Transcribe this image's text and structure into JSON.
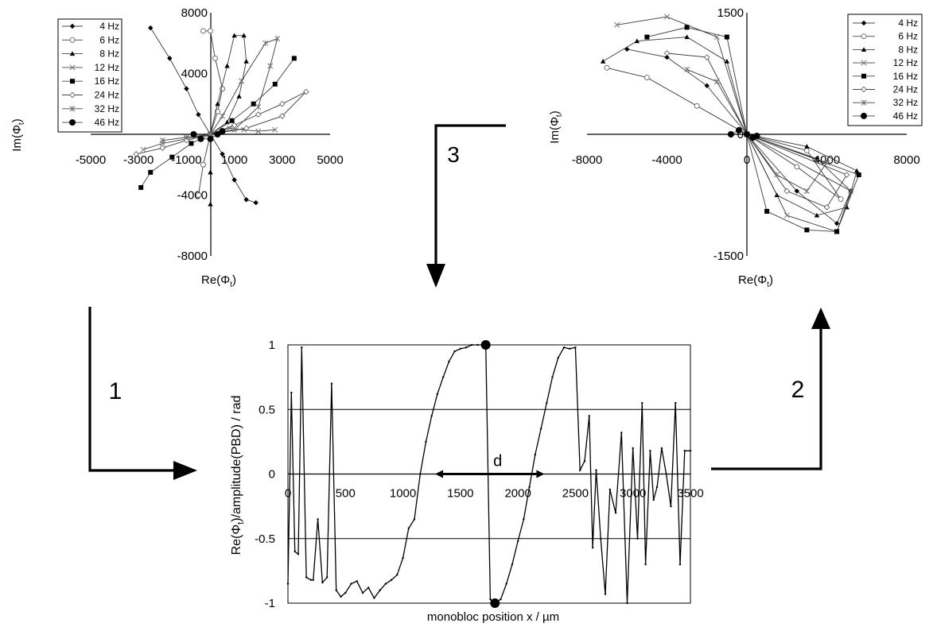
{
  "chart_data": [
    {
      "type": "scatter",
      "xlabel": "Re(Φ",
      "xlabel_sub": "t",
      "ylabel": "Im(Φ",
      "ylabel_sub": "t",
      "xlim": [
        -5000,
        5000
      ],
      "ylim": [
        -8000,
        8000
      ],
      "xticks": [
        "-5000",
        "-3000",
        "-1000",
        "1000",
        "3000",
        "5000"
      ],
      "xtick_values": [
        -5000,
        -3000,
        -1000,
        1000,
        3000,
        5000
      ],
      "yticks": [
        "8000",
        "4000",
        "-4000",
        "-8000"
      ],
      "ytick_values": [
        8000,
        4000,
        -4000,
        -8000
      ],
      "grid": false,
      "legend_position": "top-left",
      "series": [
        {
          "name": "4 Hz",
          "marker": "diamond",
          "points": [
            [
              -2500,
              7000
            ],
            [
              -1700,
              5000
            ],
            [
              -1000,
              3000
            ],
            [
              -500,
              1300
            ],
            [
              0,
              0
            ],
            [
              500,
              -1300
            ],
            [
              1000,
              -3000
            ],
            [
              1500,
              -4300
            ],
            [
              1900,
              -4500
            ]
          ]
        },
        {
          "name": "6 Hz",
          "marker": "circle-open",
          "points": [
            [
              -500,
              -4000
            ],
            [
              -300,
              -2000
            ],
            [
              0,
              0
            ],
            [
              300,
              1500
            ],
            [
              500,
              3000
            ],
            [
              200,
              5000
            ],
            [
              0,
              6800
            ],
            [
              -300,
              6800
            ]
          ]
        },
        {
          "name": "8 Hz",
          "marker": "triangle",
          "points": [
            [
              0,
              -4600
            ],
            [
              0,
              -2500
            ],
            [
              0,
              0
            ],
            [
              300,
              2000
            ],
            [
              700,
              4500
            ],
            [
              1000,
              6500
            ],
            [
              1400,
              6500
            ],
            [
              1500,
              4800
            ],
            [
              1200,
              2500
            ],
            [
              700,
              800
            ],
            [
              0,
              0
            ]
          ]
        },
        {
          "name": "12 Hz",
          "marker": "x",
          "points": [
            [
              -2800,
              -1000
            ],
            [
              -2000,
              -600
            ],
            [
              -1000,
              -300
            ],
            [
              0,
              0
            ],
            [
              800,
              400
            ],
            [
              1400,
              300
            ],
            [
              2000,
              200
            ],
            [
              2700,
              300
            ]
          ]
        },
        {
          "name": "16 Hz",
          "marker": "square",
          "points": [
            [
              -2900,
              -3500
            ],
            [
              -2500,
              -2500
            ],
            [
              -1600,
              -1500
            ],
            [
              -800,
              -600
            ],
            [
              0,
              0
            ],
            [
              900,
              900
            ],
            [
              1800,
              2000
            ],
            [
              2700,
              3300
            ],
            [
              3500,
              5000
            ]
          ]
        },
        {
          "name": "24 Hz",
          "marker": "diamond-open",
          "points": [
            [
              -3100,
              -1300
            ],
            [
              -2000,
              -900
            ],
            [
              -1000,
              -400
            ],
            [
              0,
              0
            ],
            [
              1000,
              600
            ],
            [
              2000,
              1300
            ],
            [
              3000,
              2000
            ],
            [
              4000,
              2800
            ],
            [
              3000,
              1200
            ],
            [
              1500,
              400
            ],
            [
              0,
              0
            ]
          ]
        },
        {
          "name": "32 Hz",
          "marker": "star",
          "points": [
            [
              -2000,
              -400
            ],
            [
              -1000,
              -200
            ],
            [
              0,
              0
            ],
            [
              1000,
              300
            ],
            [
              2000,
              1800
            ],
            [
              2500,
              4500
            ],
            [
              2800,
              6300
            ],
            [
              2300,
              6000
            ],
            [
              1300,
              3500
            ],
            [
              500,
              1200
            ],
            [
              0,
              0
            ]
          ]
        },
        {
          "name": "46 Hz",
          "marker": "circle",
          "points": [
            [
              -700,
              0
            ],
            [
              -400,
              -300
            ],
            [
              0,
              -300
            ],
            [
              300,
              0
            ],
            [
              500,
              200
            ]
          ]
        }
      ]
    },
    {
      "type": "scatter",
      "xlabel": "Re(Φ",
      "xlabel_sub": "t",
      "ylabel": "Im(Φ",
      "ylabel_sub": "t",
      "xlim": [
        -8000,
        8000
      ],
      "ylim": [
        -1500,
        1500
      ],
      "xticks": [
        "-8000",
        "-4000",
        "0",
        "4000",
        "8000"
      ],
      "xtick_values": [
        -8000,
        -4000,
        0,
        4000,
        8000
      ],
      "yticks": [
        "1500",
        "0",
        "-1500"
      ],
      "ytick_values": [
        1500,
        0,
        -1500
      ],
      "grid": false,
      "legend_position": "top-right",
      "series": [
        {
          "name": "4 Hz",
          "marker": "diamond",
          "points": [
            [
              -6000,
              1050
            ],
            [
              -4000,
              950
            ],
            [
              -2000,
              600
            ],
            [
              0,
              0
            ],
            [
              2500,
              -700
            ],
            [
              4500,
              -1100
            ],
            [
              5200,
              -700
            ],
            [
              3500,
              -300
            ],
            [
              0,
              0
            ]
          ]
        },
        {
          "name": "6 Hz",
          "marker": "circle-open",
          "points": [
            [
              -7000,
              820
            ],
            [
              -5000,
              700
            ],
            [
              -2500,
              350
            ],
            [
              0,
              0
            ],
            [
              2500,
              -400
            ],
            [
              4700,
              -800
            ],
            [
              3000,
              -200
            ],
            [
              0,
              0
            ]
          ]
        },
        {
          "name": "8 Hz",
          "marker": "triangle",
          "points": [
            [
              -7200,
              900
            ],
            [
              -5500,
              1150
            ],
            [
              -3000,
              1200
            ],
            [
              -1000,
              900
            ],
            [
              0,
              0
            ],
            [
              1500,
              -750
            ],
            [
              3500,
              -1000
            ],
            [
              5000,
              -900
            ],
            [
              5500,
              -450
            ],
            [
              3000,
              -150
            ],
            [
              0,
              0
            ]
          ]
        },
        {
          "name": "12 Hz",
          "marker": "x",
          "points": [
            [
              -6500,
              1350
            ],
            [
              -4000,
              1450
            ],
            [
              -1500,
              1200
            ],
            [
              0,
              0
            ],
            [
              2000,
              -1000
            ],
            [
              4500,
              -1200
            ],
            [
              5200,
              -700
            ],
            [
              0,
              0
            ]
          ]
        },
        {
          "name": "16 Hz",
          "marker": "square",
          "points": [
            [
              -5000,
              1200
            ],
            [
              -3000,
              1320
            ],
            [
              -1000,
              1200
            ],
            [
              0,
              0
            ],
            [
              1000,
              -950
            ],
            [
              3000,
              -1180
            ],
            [
              4500,
              -1200
            ],
            [
              5600,
              -500
            ],
            [
              0,
              0
            ]
          ]
        },
        {
          "name": "24 Hz",
          "marker": "diamond-open",
          "points": [
            [
              -4000,
              1000
            ],
            [
              -2000,
              950
            ],
            [
              0,
              0
            ],
            [
              2000,
              -700
            ],
            [
              4000,
              -900
            ],
            [
              5000,
              -500
            ],
            [
              0,
              0
            ]
          ]
        },
        {
          "name": "32 Hz",
          "marker": "star",
          "points": [
            [
              -3000,
              800
            ],
            [
              -1500,
              650
            ],
            [
              0,
              0
            ],
            [
              1500,
              -500
            ],
            [
              3000,
              -700
            ],
            [
              4000,
              -350
            ],
            [
              0,
              0
            ]
          ]
        },
        {
          "name": "46 Hz",
          "marker": "circle",
          "points": [
            [
              -800,
              0
            ],
            [
              -400,
              50
            ],
            [
              0,
              0
            ],
            [
              300,
              -40
            ],
            [
              500,
              -20
            ]
          ]
        }
      ]
    },
    {
      "type": "line",
      "xlabel": "monobloc position x / µm",
      "ylabel": "Re(Φ",
      "ylabel_sub": "t",
      "ylabel_tail": ")/amplitude(PBD) / rad",
      "xlim": [
        0,
        3500
      ],
      "ylim": [
        -1,
        1
      ],
      "xticks": [
        "0",
        "500",
        "1000",
        "1500",
        "2000",
        "2500",
        "3000",
        "3500"
      ],
      "xtick_values": [
        0,
        500,
        1000,
        1500,
        2000,
        2500,
        3000,
        3500
      ],
      "yticks": [
        "1",
        "0.5",
        "0",
        "-0.5",
        "-1"
      ],
      "ytick_values": [
        1,
        0.5,
        0,
        -0.5,
        -1
      ],
      "grid": true,
      "annotation": "d",
      "annotation_range": [
        1280,
        2230
      ],
      "extrema": [
        [
          1720,
          1
        ],
        [
          1800,
          -1
        ]
      ],
      "series": [
        {
          "x": [
            0,
            30,
            60,
            90,
            120,
            160,
            200,
            220,
            260,
            300,
            340,
            380,
            420,
            460,
            500,
            550,
            600,
            650,
            700,
            750,
            800,
            850,
            900,
            950,
            1000,
            1050,
            1100,
            1150,
            1200,
            1250,
            1300,
            1350,
            1400,
            1450,
            1500,
            1550,
            1600,
            1650,
            1700,
            1720,
            1760,
            1800,
            1850,
            1900,
            1950,
            2000,
            2050,
            2100,
            2150,
            2200,
            2250,
            2300,
            2350,
            2400,
            2450,
            2500,
            2540,
            2580,
            2620,
            2650,
            2680,
            2720,
            2760,
            2800,
            2850,
            2900,
            2950,
            3000,
            3040,
            3080,
            3110,
            3150,
            3180,
            3210,
            3250,
            3290,
            3330,
            3370,
            3410,
            3450,
            3500
          ],
          "y": [
            -0.85,
            0.63,
            -0.6,
            -0.62,
            0.98,
            -0.8,
            -0.82,
            -0.82,
            -0.35,
            -0.84,
            -0.8,
            0.7,
            -0.9,
            -0.95,
            -0.92,
            -0.85,
            -0.83,
            -0.92,
            -0.88,
            -0.96,
            -0.9,
            -0.85,
            -0.82,
            -0.78,
            -0.65,
            -0.42,
            -0.35,
            0.0,
            0.25,
            0.45,
            0.62,
            0.75,
            0.87,
            0.95,
            0.97,
            0.98,
            1.0,
            1.0,
            1.0,
            1.0,
            -0.97,
            -1.0,
            -0.97,
            -0.85,
            -0.7,
            -0.52,
            -0.35,
            -0.1,
            0.15,
            0.35,
            0.55,
            0.75,
            0.9,
            0.98,
            0.97,
            0.98,
            0.03,
            0.1,
            0.45,
            -0.57,
            0.03,
            -0.5,
            -0.93,
            -0.12,
            -0.3,
            0.32,
            -1.0,
            0.2,
            -0.5,
            0.55,
            -0.7,
            0.18,
            -0.2,
            -0.1,
            0.2,
            0.0,
            -0.25,
            0.55,
            -0.7,
            0.18,
            0.18
          ]
        }
      ]
    }
  ],
  "flow_labels": [
    "1",
    "2",
    "3"
  ]
}
